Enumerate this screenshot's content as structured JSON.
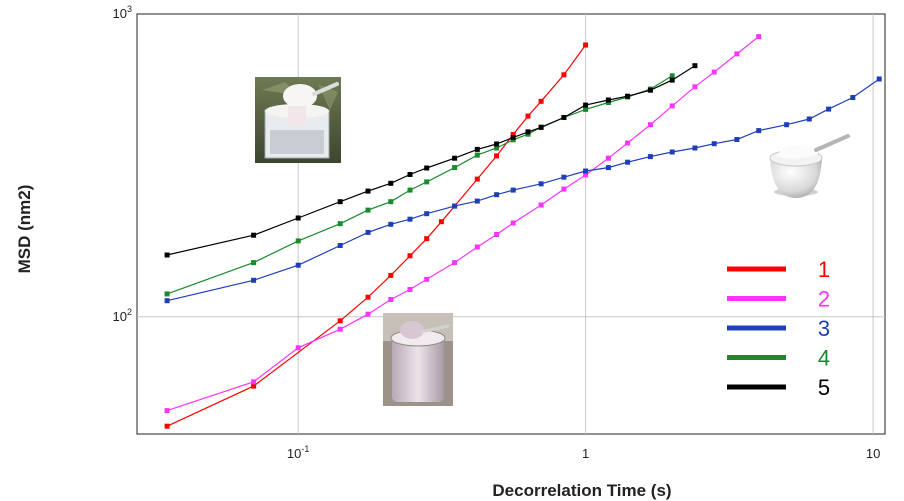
{
  "chart_data": {
    "type": "line",
    "title": "",
    "xlabel": "Decorrelation Time (s)",
    "ylabel": "MSD (nm2)",
    "x_scale": "log",
    "y_scale": "log",
    "xlim": [
      0.0275,
      11
    ],
    "ylim": [
      41,
      1000
    ],
    "grid": true,
    "legend_position": "right",
    "x_ticks": [
      {
        "value": 0.1,
        "base": "10",
        "exp": "-1"
      },
      {
        "value": 1,
        "base": "1",
        "exp": ""
      },
      {
        "value": 10,
        "base": "10",
        "exp": ""
      }
    ],
    "y_ticks": [
      {
        "value": 100,
        "base": "10",
        "exp": "2"
      },
      {
        "value": 1000,
        "base": "10",
        "exp": "3"
      }
    ],
    "series": [
      {
        "name": "1",
        "color": "#ff0000",
        "x": [
          0.035,
          0.07,
          0.14,
          0.175,
          0.21,
          0.245,
          0.28,
          0.315,
          0.35,
          0.42,
          0.49,
          0.56,
          0.63,
          0.7,
          0.84,
          1.0
        ],
        "y": [
          43.5,
          59,
          97,
          116,
          137,
          159,
          181,
          206,
          232,
          285,
          340,
          400,
          460,
          515,
          630,
          790
        ]
      },
      {
        "name": "2",
        "color": "#ff33ff",
        "x": [
          0.035,
          0.07,
          0.1,
          0.14,
          0.175,
          0.21,
          0.245,
          0.28,
          0.35,
          0.42,
          0.49,
          0.56,
          0.7,
          0.84,
          1.0,
          1.2,
          1.4,
          1.68,
          2.0,
          2.4,
          2.8,
          3.36,
          4.0
        ],
        "y": [
          49,
          61,
          79,
          91,
          102,
          114,
          123,
          133,
          151,
          170,
          187,
          204,
          234,
          264,
          294,
          334,
          375,
          431,
          497,
          575,
          643,
          738,
          842
        ]
      },
      {
        "name": "3",
        "color": "#1f3fb8",
        "x": [
          0.035,
          0.07,
          0.1,
          0.14,
          0.175,
          0.21,
          0.245,
          0.28,
          0.35,
          0.42,
          0.49,
          0.56,
          0.7,
          0.84,
          1.0,
          1.2,
          1.4,
          1.68,
          2.0,
          2.4,
          2.8,
          3.36,
          4.0,
          5.0,
          6.0,
          7.0,
          8.5,
          10.5
        ],
        "y": [
          113,
          132,
          148,
          172,
          190,
          202,
          210,
          219,
          232,
          241,
          253,
          262,
          275,
          289,
          303,
          311,
          324,
          338,
          350,
          361,
          373,
          385,
          412,
          431,
          450,
          485,
          530,
          610
        ]
      },
      {
        "name": "4",
        "color": "#1a8a2e",
        "x": [
          0.035,
          0.07,
          0.1,
          0.14,
          0.175,
          0.21,
          0.245,
          0.28,
          0.35,
          0.42,
          0.49,
          0.56,
          0.63,
          0.7,
          0.84,
          1.0,
          1.2,
          1.4,
          1.68,
          2.0
        ],
        "y": [
          119,
          151,
          178,
          203,
          225,
          240,
          262,
          279,
          311,
          342,
          361,
          384,
          401,
          423,
          455,
          484,
          510,
          532,
          565,
          625
        ]
      },
      {
        "name": "5",
        "color": "#000000",
        "x": [
          0.035,
          0.07,
          0.1,
          0.14,
          0.175,
          0.21,
          0.245,
          0.28,
          0.35,
          0.42,
          0.49,
          0.56,
          0.63,
          0.7,
          0.84,
          1.0,
          1.2,
          1.4,
          1.68,
          2.0,
          2.4
        ],
        "y": [
          160,
          186,
          212,
          240,
          260,
          276,
          295,
          310,
          334,
          357,
          372,
          391,
          408,
          422,
          455,
          500,
          520,
          535,
          560,
          605,
          675
        ]
      }
    ],
    "images": [
      {
        "name": "spoon-yogurt-cup-photo",
        "description": "photo"
      },
      {
        "name": "yogurt-bowl-photo",
        "description": "photo"
      },
      {
        "name": "yogurt-jar-photo",
        "description": "photo"
      }
    ]
  }
}
